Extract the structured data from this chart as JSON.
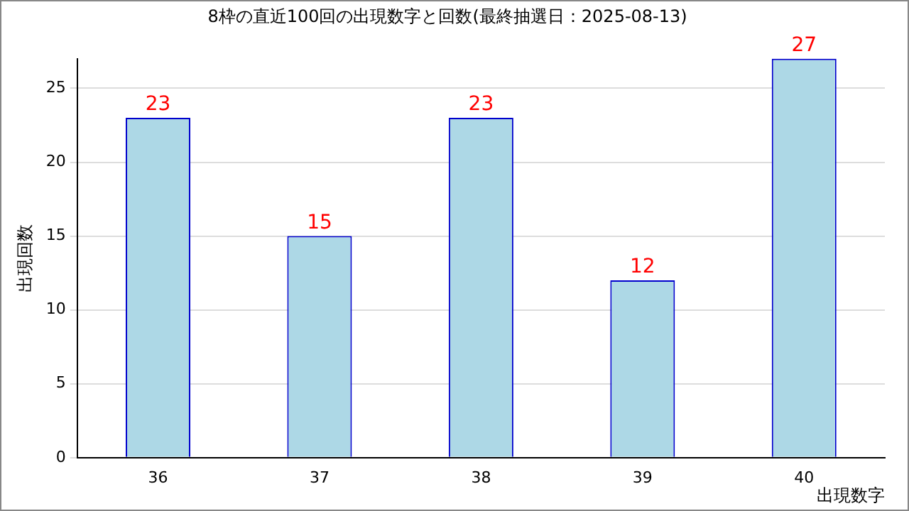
{
  "chart_data": {
    "type": "bar",
    "title": "8枠の直近100回の出現数字と回数(最終抽選日：2025-08-13)",
    "xlabel": "出現数字",
    "ylabel": "出現回数",
    "categories": [
      "36",
      "37",
      "38",
      "39",
      "40"
    ],
    "values": [
      23,
      15,
      23,
      12,
      27
    ],
    "color": "#add8e6",
    "ylim": [
      0,
      27
    ],
    "yticks": [
      0,
      5,
      10,
      15,
      20,
      25
    ],
    "grid": "y",
    "data_labels": true,
    "legend": false
  }
}
